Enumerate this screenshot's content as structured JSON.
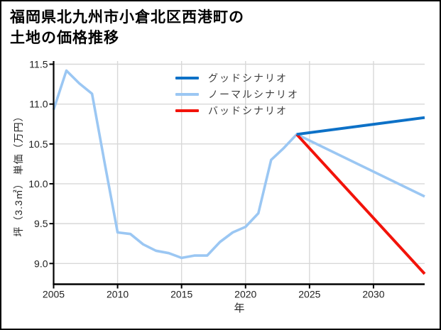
{
  "chart_data": {
    "type": "line",
    "title_lines": [
      "福岡県北九州市小倉北区西港町の",
      "土地の価格推移"
    ],
    "xlabel": "年",
    "ylabel": "坪（3.3㎡） 単価（万円）",
    "x_ticks": [
      2005,
      2010,
      2015,
      2020,
      2025,
      2030
    ],
    "y_ticks": [
      9.0,
      9.5,
      10.0,
      10.5,
      11.0,
      11.5
    ],
    "xlim": [
      2005,
      2034
    ],
    "ylim": [
      8.74,
      11.54
    ],
    "grid": true,
    "colors": {
      "good": "#0d71c7",
      "normal": "#9bc7f3",
      "bad": "#f2130a",
      "gridline": "#d8d8d8",
      "axis": "#000000"
    },
    "legend": {
      "position": "upper-center",
      "entries": [
        {
          "label": "グッドシナリオ",
          "series": "good"
        },
        {
          "label": "ノーマルシナリオ",
          "series": "normal"
        },
        {
          "label": "バッドシナリオ",
          "series": "bad"
        }
      ]
    },
    "series": [
      {
        "name": "ノーマルシナリオ",
        "key": "normal",
        "x": [
          2005,
          2006,
          2007,
          2008,
          2009,
          2010,
          2011,
          2012,
          2013,
          2014,
          2015,
          2016,
          2017,
          2018,
          2019,
          2020,
          2021,
          2022,
          2023,
          2024,
          2034
        ],
        "values": [
          10.93,
          11.42,
          11.26,
          11.13,
          10.25,
          9.39,
          9.37,
          9.24,
          9.16,
          9.13,
          9.07,
          9.1,
          9.1,
          9.27,
          9.39,
          9.46,
          9.63,
          10.3,
          10.45,
          10.62,
          9.84
        ]
      },
      {
        "name": "バッドシナリオ",
        "key": "bad",
        "x": [
          2024,
          2034
        ],
        "values": [
          10.62,
          8.87
        ]
      },
      {
        "name": "グッドシナリオ",
        "key": "good",
        "x": [
          2024,
          2034
        ],
        "values": [
          10.62,
          10.83
        ]
      }
    ]
  }
}
